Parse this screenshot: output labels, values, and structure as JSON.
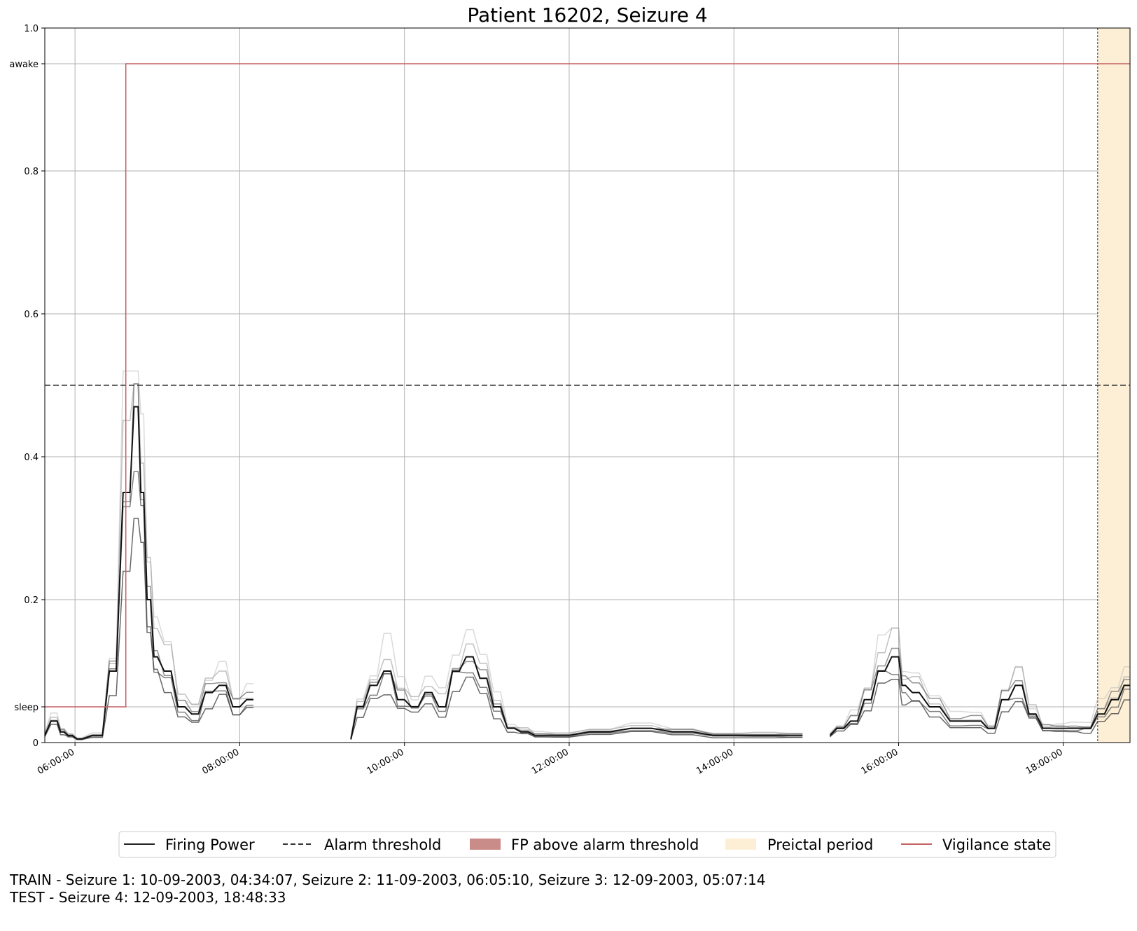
{
  "chart_data": {
    "type": "line",
    "title": "Patient 16202, Seizure 4",
    "xlabel": "",
    "ylabel": "",
    "x_range": [
      "05:38:00",
      "18:48:33"
    ],
    "ylim": [
      0,
      1.0
    ],
    "x_ticks": [
      "06:00:00",
      "08:00:00",
      "10:00:00",
      "12:00:00",
      "14:00:00",
      "16:00:00",
      "18:00:00"
    ],
    "y_ticks": [
      {
        "value": 0,
        "label": "0"
      },
      {
        "value": 0.05,
        "label": "sleep"
      },
      {
        "value": 0.2,
        "label": "0.2"
      },
      {
        "value": 0.4,
        "label": "0.4"
      },
      {
        "value": 0.6,
        "label": "0.6"
      },
      {
        "value": 0.8,
        "label": "0.8"
      },
      {
        "value": 0.95,
        "label": "awake"
      },
      {
        "value": 1.0,
        "label": "1.0"
      }
    ],
    "grid": true,
    "alarm_threshold": 0.5,
    "preictal_period": [
      "18:25:00",
      "18:48:33"
    ],
    "vigilance_state": {
      "x": [
        "05:38:00",
        "06:37:00",
        "06:37:00",
        "18:48:33"
      ],
      "y": [
        0.05,
        0.05,
        0.95,
        0.95
      ]
    },
    "firing_power_gaps": [
      [
        "08:12:00",
        "09:21:00"
      ],
      [
        "14:50:00",
        "15:10:00"
      ]
    ],
    "firing_power_mean": {
      "x": [
        "05:38:00",
        "05:47:00",
        "05:52:00",
        "05:58:00",
        "06:05:00",
        "06:20:00",
        "06:30:00",
        "06:40:00",
        "06:46:00",
        "06:50:00",
        "06:55:00",
        "07:00:00",
        "07:10:00",
        "07:20:00",
        "07:30:00",
        "07:40:00",
        "07:50:00",
        "08:00:00",
        "08:10:00",
        "09:21:00",
        "09:30:00",
        "09:40:00",
        "09:50:00",
        "10:00:00",
        "10:10:00",
        "10:20:00",
        "10:30:00",
        "10:40:00",
        "10:50:00",
        "11:00:00",
        "11:10:00",
        "11:20:00",
        "11:30:00",
        "11:40:00",
        "12:00:00",
        "12:30:00",
        "13:00:00",
        "13:30:00",
        "14:00:00",
        "14:30:00",
        "14:50:00",
        "15:10:00",
        "15:20:00",
        "15:30:00",
        "15:40:00",
        "15:50:00",
        "16:00:00",
        "16:05:00",
        "16:15:00",
        "16:30:00",
        "16:45:00",
        "17:00:00",
        "17:10:00",
        "17:20:00",
        "17:30:00",
        "17:40:00",
        "17:50:00",
        "18:00:00",
        "18:10:00",
        "18:20:00",
        "18:30:00",
        "18:40:00",
        "18:48:33"
      ],
      "y": [
        0.01,
        0.03,
        0.015,
        0.01,
        0.005,
        0.01,
        0.1,
        0.35,
        0.47,
        0.35,
        0.2,
        0.12,
        0.1,
        0.05,
        0.04,
        0.07,
        0.08,
        0.05,
        0.06,
        0.005,
        0.05,
        0.08,
        0.1,
        0.06,
        0.05,
        0.07,
        0.05,
        0.1,
        0.12,
        0.09,
        0.05,
        0.02,
        0.015,
        0.01,
        0.01,
        0.015,
        0.02,
        0.015,
        0.01,
        0.01,
        0.01,
        0.01,
        0.02,
        0.03,
        0.06,
        0.1,
        0.12,
        0.08,
        0.07,
        0.05,
        0.03,
        0.03,
        0.02,
        0.06,
        0.08,
        0.04,
        0.02,
        0.02,
        0.02,
        0.02,
        0.04,
        0.06,
        0.08
      ]
    }
  },
  "legend": {
    "items": [
      {
        "label": "Firing Power",
        "kind": "line-solid",
        "color": "#222222"
      },
      {
        "label": "Alarm threshold",
        "kind": "line-dashed",
        "color": "#333333"
      },
      {
        "label": "FP above alarm threshold",
        "kind": "patch",
        "color": "#c98c89"
      },
      {
        "label": "Preictal period",
        "kind": "patch",
        "color": "#fdefd6"
      },
      {
        "label": "Vigilance state",
        "kind": "line-solid",
        "color": "#c46060"
      }
    ]
  },
  "footer": {
    "train": "TRAIN - Seizure 1: 10-09-2003, 04:34:07, Seizure 2: 11-09-2003, 06:05:10, Seizure 3: 12-09-2003, 05:07:14",
    "test": "TEST - Seizure 4: 12-09-2003, 18:48:33"
  },
  "colors": {
    "firing_power": "#111111",
    "threshold": "#333333",
    "vigilance": "#c46060",
    "preictal": "#fdefd6",
    "grid": "#b0b0b0"
  }
}
